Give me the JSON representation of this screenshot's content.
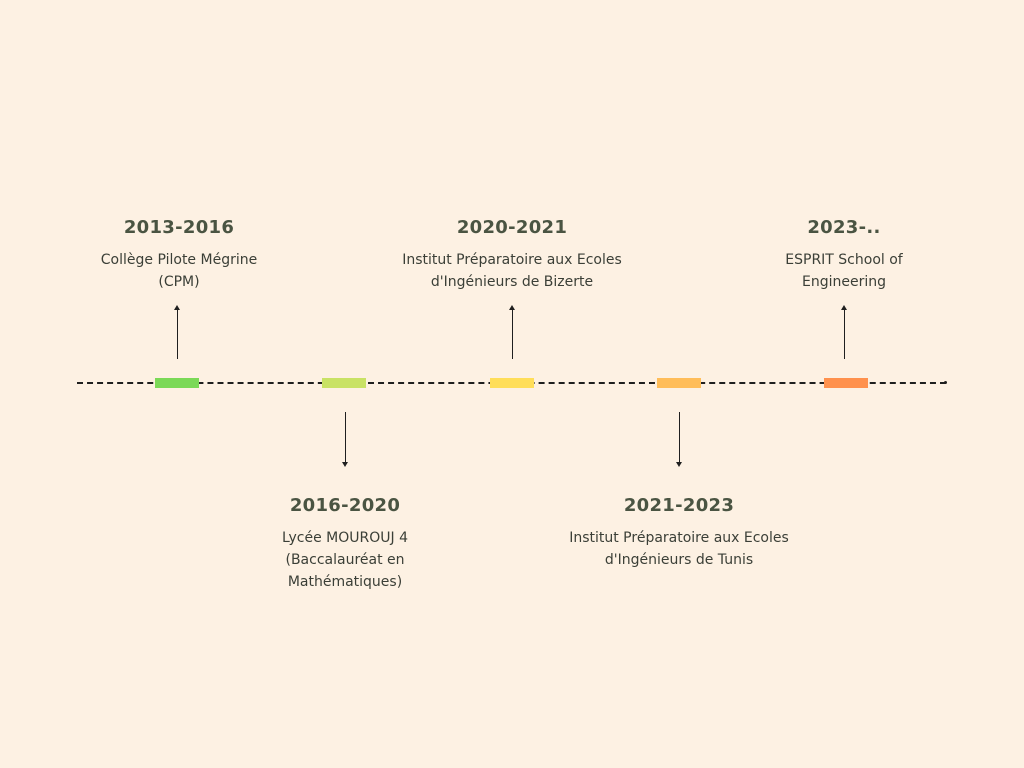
{
  "timeline": {
    "events": [
      {
        "years": "2013-2016",
        "description": "Collège Pilote Mégrine (CPM)",
        "color": "#7bd957",
        "position": "above"
      },
      {
        "years": "2016-2020",
        "description": "Lycée MOUROUJ 4 (Baccalauréat en Mathématiques)",
        "color": "#c9e265",
        "position": "below"
      },
      {
        "years": "2020-2021",
        "description": "Institut Préparatoire aux Ecoles d'Ingénieurs de Bizerte",
        "color": "#ffde59",
        "position": "above"
      },
      {
        "years": "2021-2023",
        "description": "Institut Préparatoire aux Ecoles d'Ingénieurs de Tunis",
        "color": "#ffbd59",
        "position": "below"
      },
      {
        "years": "2023-..",
        "description": "ESPRIT School of Engineering",
        "color": "#ff914d",
        "position": "above"
      }
    ]
  }
}
